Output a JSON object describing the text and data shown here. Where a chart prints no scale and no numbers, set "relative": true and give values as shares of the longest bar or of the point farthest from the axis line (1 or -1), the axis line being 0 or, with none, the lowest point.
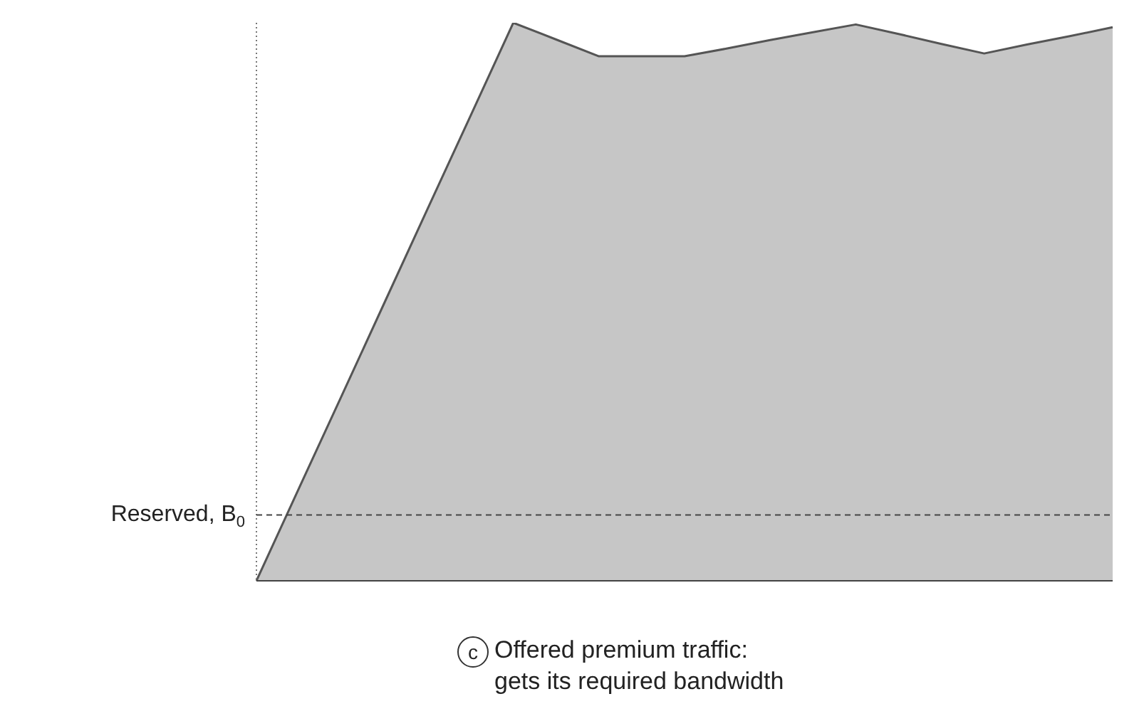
{
  "chart_data": {
    "type": "area",
    "relative": true,
    "categories": [
      null,
      null,
      null,
      null,
      null,
      null,
      null,
      null,
      null,
      null,
      null,
      null,
      null,
      null,
      null,
      null,
      null,
      null,
      null,
      null,
      null
    ],
    "series": [
      {
        "color": "#555555",
        "values": [
          0,
          0.167,
          0.333,
          0.5,
          0.667,
          0.833,
          1,
          0.97,
          0.94,
          0.94,
          0.94,
          0.954,
          0.969,
          0.983,
          0.997,
          0.98,
          0.962,
          0.945,
          0.961,
          0.976,
          0.992
        ]
      }
    ],
    "ref_lines": [
      {
        "axis": "y",
        "value": 0.118,
        "label": "Reserved, B$_{0}$",
        "color": "#444444",
        "line_style": "dashed"
      }
    ],
    "annotations": [
      "c",
      "Offered premium traffic:\ngets its required bandwidth"
    ]
  }
}
